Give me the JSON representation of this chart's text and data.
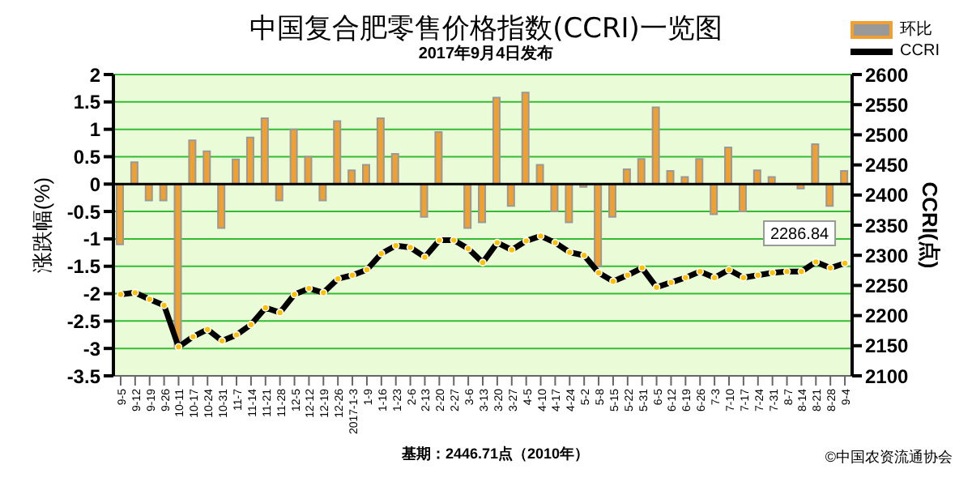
{
  "chart_data": {
    "type": "bar",
    "title": "中国复合肥零售价格指数(CCRI)一览图",
    "subtitle": "2017年9月4日发布",
    "ylabel": "涨跌幅(%)",
    "y2label": "CCRI(点)",
    "categories": [
      "9-5",
      "9-12",
      "9-19",
      "9-26",
      "10-11",
      "10-17",
      "10-24",
      "10-31",
      "11-7",
      "11-14",
      "11-21",
      "11-28",
      "12-5",
      "12-12",
      "12-19",
      "12-26",
      "2017-1-3",
      "1-9",
      "1-16",
      "1-23",
      "2-6",
      "2-13",
      "2-20",
      "2-27",
      "3-6",
      "3-13",
      "3-20",
      "3-27",
      "4-5",
      "4-10",
      "4-17",
      "4-24",
      "5-2",
      "5-8",
      "5-15",
      "5-22",
      "5-31",
      "6-5",
      "6-12",
      "6-19",
      "6-26",
      "7-3",
      "7-10",
      "7-17",
      "7-24",
      "7-31",
      "8-7",
      "8-14",
      "8-21",
      "8-28",
      "9-4"
    ],
    "series": [
      {
        "name": "环比",
        "color": "#f0a030",
        "values": [
          -1.1,
          0.4,
          -0.3,
          -0.3,
          -3.0,
          0.8,
          0.6,
          -0.8,
          0.45,
          0.85,
          1.2,
          -0.3,
          1.0,
          0.5,
          -0.3,
          1.15,
          0.25,
          0.35,
          1.2,
          0.55,
          0,
          -0.6,
          0.95,
          0,
          -0.8,
          -0.7,
          1.58,
          -0.4,
          1.67,
          0.35,
          -0.5,
          -0.7,
          -0.05,
          -1.5,
          -0.6,
          0.27,
          0.46,
          1.4,
          0.24,
          0.13,
          0.46,
          -0.55,
          0.67,
          -0.5,
          0.25,
          0.13,
          0,
          -0.08,
          0.73,
          -0.4,
          0.24
        ]
      },
      {
        "name": "CCRI",
        "type": "line",
        "axis": "y2",
        "color": "#000000",
        "marker": "circle",
        "values": [
          2235,
          2238,
          2227,
          2217,
          2148,
          2165,
          2177,
          2158,
          2168,
          2185,
          2213,
          2205,
          2235,
          2245,
          2238,
          2261,
          2267,
          2276,
          2303,
          2316,
          2313,
          2297,
          2325,
          2325,
          2311,
          2288,
          2321,
          2309,
          2324,
          2332,
          2321,
          2305,
          2300,
          2271,
          2257,
          2267,
          2279,
          2247,
          2255,
          2263,
          2273,
          2263,
          2276,
          2263,
          2267,
          2271,
          2273,
          2273,
          2289,
          2279,
          2286.84
        ],
        "value_labels": [
          null,
          null,
          null,
          null,
          null,
          null,
          null,
          null,
          null,
          null,
          null,
          null,
          null,
          null,
          null,
          null,
          null,
          null,
          null,
          null,
          null,
          null,
          null,
          null,
          null,
          null,
          null,
          null,
          null,
          null,
          null,
          null,
          null,
          null,
          null,
          null,
          null,
          null,
          null,
          null,
          null,
          null,
          null,
          null,
          null,
          null,
          null,
          null,
          null,
          null,
          "2286.84"
        ]
      }
    ],
    "ylim": [
      -3.5,
      2
    ],
    "yticks": [
      -3.5,
      -3,
      -2.5,
      -2,
      -1.5,
      -1,
      -0.5,
      0,
      0.5,
      1,
      1.5,
      2
    ],
    "y2lim": [
      2100,
      2600
    ],
    "y2ticks": [
      2100,
      2150,
      2200,
      2250,
      2300,
      2350,
      2400,
      2450,
      2500,
      2550,
      2600
    ],
    "grid": "y",
    "legend": "top right",
    "annotations": [
      "基期：2446.71点（2010年）",
      "©中国农资流通协会"
    ]
  }
}
